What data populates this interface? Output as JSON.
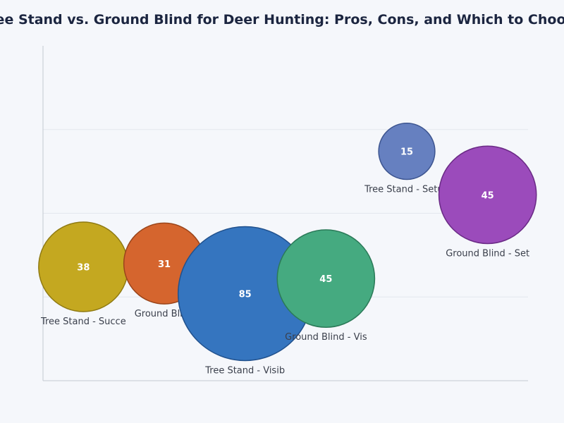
{
  "chart_data": {
    "type": "bubble",
    "title": "Tree Stand vs. Ground Blind for Deer Hunting: Pros, Cons, and Which to Choose",
    "xlabel": "",
    "ylabel": "",
    "grid": true,
    "x_range": [
      0.5,
      6.5
    ],
    "y_range": [
      0,
      4
    ],
    "points": [
      {
        "label": "Tree Stand - Succe",
        "x": 1,
        "y": 1.36,
        "size": 38,
        "color": "#c4a820",
        "stroke": "#8f7a12"
      },
      {
        "label": "Ground Blind",
        "x": 2,
        "y": 1.4,
        "size": 31,
        "color": "#d5652e",
        "stroke": "#9a451b"
      },
      {
        "label": "Tree Stand - Visib",
        "x": 3,
        "y": 1.04,
        "size": 85,
        "color": "#3575bf",
        "stroke": "#21518d"
      },
      {
        "label": "Ground Blind - Vis",
        "x": 4,
        "y": 1.22,
        "size": 45,
        "color": "#45aa80",
        "stroke": "#2b7a58"
      },
      {
        "label": "Tree Stand - Setup",
        "x": 5,
        "y": 2.74,
        "size": 15,
        "color": "#6680c0",
        "stroke": "#3d5590"
      },
      {
        "label": "Ground Blind - Set",
        "x": 6,
        "y": 2.22,
        "size": 45,
        "color": "#9b4bbb",
        "stroke": "#6a2a85"
      }
    ]
  }
}
